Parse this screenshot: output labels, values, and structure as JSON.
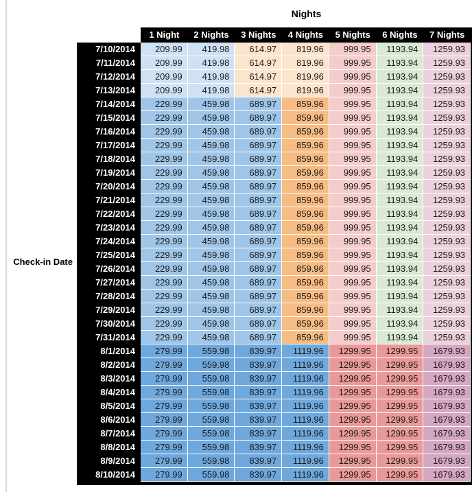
{
  "chart_data": {
    "type": "table",
    "title": "Nights",
    "row_axis": "Check-in Date",
    "columns": [
      "1 Night",
      "2 Nights",
      "3 Nights",
      "4 Nights",
      "5 Nights",
      "6 Nights",
      "7 Nights"
    ],
    "rows": [
      {
        "date": "7/10/2014",
        "tier": "low",
        "values": [
          "209.99",
          "419.98",
          "614.97",
          "819.96",
          "999.95",
          "1193.94",
          "1259.93"
        ]
      },
      {
        "date": "7/11/2014",
        "tier": "low",
        "values": [
          "209.99",
          "419.98",
          "614.97",
          "819.96",
          "999.95",
          "1193.94",
          "1259.93"
        ]
      },
      {
        "date": "7/12/2014",
        "tier": "low",
        "values": [
          "209.99",
          "419.98",
          "614.97",
          "819.96",
          "999.95",
          "1193.94",
          "1259.93"
        ]
      },
      {
        "date": "7/13/2014",
        "tier": "low",
        "values": [
          "209.99",
          "419.98",
          "614.97",
          "819.96",
          "999.95",
          "1193.94",
          "1259.93"
        ]
      },
      {
        "date": "7/14/2014",
        "tier": "mid",
        "values": [
          "229.99",
          "459.98",
          "689.97",
          "859.96",
          "999.95",
          "1193.94",
          "1259.93"
        ]
      },
      {
        "date": "7/15/2014",
        "tier": "mid",
        "values": [
          "229.99",
          "459.98",
          "689.97",
          "859.96",
          "999.95",
          "1193.94",
          "1259.93"
        ]
      },
      {
        "date": "7/16/2014",
        "tier": "mid",
        "values": [
          "229.99",
          "459.98",
          "689.97",
          "859.96",
          "999.95",
          "1193.94",
          "1259.93"
        ]
      },
      {
        "date": "7/17/2014",
        "tier": "mid",
        "values": [
          "229.99",
          "459.98",
          "689.97",
          "859.96",
          "999.95",
          "1193.94",
          "1259.93"
        ]
      },
      {
        "date": "7/18/2014",
        "tier": "mid",
        "values": [
          "229.99",
          "459.98",
          "689.97",
          "859.96",
          "999.95",
          "1193.94",
          "1259.93"
        ]
      },
      {
        "date": "7/19/2014",
        "tier": "mid",
        "values": [
          "229.99",
          "459.98",
          "689.97",
          "859.96",
          "999.95",
          "1193.94",
          "1259.93"
        ]
      },
      {
        "date": "7/20/2014",
        "tier": "mid",
        "values": [
          "229.99",
          "459.98",
          "689.97",
          "859.96",
          "999.95",
          "1193.94",
          "1259.93"
        ]
      },
      {
        "date": "7/21/2014",
        "tier": "mid",
        "values": [
          "229.99",
          "459.98",
          "689.97",
          "859.96",
          "999.95",
          "1193.94",
          "1259.93"
        ]
      },
      {
        "date": "7/22/2014",
        "tier": "mid",
        "values": [
          "229.99",
          "459.98",
          "689.97",
          "859.96",
          "999.95",
          "1193.94",
          "1259.93"
        ]
      },
      {
        "date": "7/23/2014",
        "tier": "mid",
        "values": [
          "229.99",
          "459.98",
          "689.97",
          "859.96",
          "999.95",
          "1193.94",
          "1259.93"
        ]
      },
      {
        "date": "7/24/2014",
        "tier": "mid",
        "values": [
          "229.99",
          "459.98",
          "689.97",
          "859.96",
          "999.95",
          "1193.94",
          "1259.93"
        ]
      },
      {
        "date": "7/25/2014",
        "tier": "mid",
        "values": [
          "229.99",
          "459.98",
          "689.97",
          "859.96",
          "999.95",
          "1193.94",
          "1259.93"
        ]
      },
      {
        "date": "7/26/2014",
        "tier": "mid",
        "values": [
          "229.99",
          "459.98",
          "689.97",
          "859.96",
          "999.95",
          "1193.94",
          "1259.93"
        ]
      },
      {
        "date": "7/27/2014",
        "tier": "mid",
        "values": [
          "229.99",
          "459.98",
          "689.97",
          "859.96",
          "999.95",
          "1193.94",
          "1259.93"
        ]
      },
      {
        "date": "7/28/2014",
        "tier": "mid",
        "values": [
          "229.99",
          "459.98",
          "689.97",
          "859.96",
          "999.95",
          "1193.94",
          "1259.93"
        ]
      },
      {
        "date": "7/29/2014",
        "tier": "mid",
        "values": [
          "229.99",
          "459.98",
          "689.97",
          "859.96",
          "999.95",
          "1193.94",
          "1259.93"
        ]
      },
      {
        "date": "7/30/2014",
        "tier": "mid",
        "values": [
          "229.99",
          "459.98",
          "689.97",
          "859.96",
          "999.95",
          "1193.94",
          "1259.93"
        ]
      },
      {
        "date": "7/31/2014",
        "tier": "mid",
        "values": [
          "229.99",
          "459.98",
          "689.97",
          "859.96",
          "999.95",
          "1193.94",
          "1259.93"
        ]
      },
      {
        "date": "8/1/2014",
        "tier": "high",
        "values": [
          "279.99",
          "559.98",
          "839.97",
          "1119.96",
          "1299.95",
          "1299.95",
          "1679.93"
        ]
      },
      {
        "date": "8/2/2014",
        "tier": "high",
        "values": [
          "279.99",
          "559.98",
          "839.97",
          "1119.96",
          "1299.95",
          "1299.95",
          "1679.93"
        ]
      },
      {
        "date": "8/3/2014",
        "tier": "high",
        "values": [
          "279.99",
          "559.98",
          "839.97",
          "1119.96",
          "1299.95",
          "1299.95",
          "1679.93"
        ]
      },
      {
        "date": "8/4/2014",
        "tier": "high",
        "values": [
          "279.99",
          "559.98",
          "839.97",
          "1119.96",
          "1299.95",
          "1299.95",
          "1679.93"
        ]
      },
      {
        "date": "8/5/2014",
        "tier": "high",
        "values": [
          "279.99",
          "559.98",
          "839.97",
          "1119.96",
          "1299.95",
          "1299.95",
          "1679.93"
        ]
      },
      {
        "date": "8/6/2014",
        "tier": "high",
        "values": [
          "279.99",
          "559.98",
          "839.97",
          "1119.96",
          "1299.95",
          "1299.95",
          "1679.93"
        ]
      },
      {
        "date": "8/7/2014",
        "tier": "high",
        "values": [
          "279.99",
          "559.98",
          "839.97",
          "1119.96",
          "1299.95",
          "1299.95",
          "1679.93"
        ]
      },
      {
        "date": "8/8/2014",
        "tier": "high",
        "values": [
          "279.99",
          "559.98",
          "839.97",
          "1119.96",
          "1299.95",
          "1299.95",
          "1679.93"
        ]
      },
      {
        "date": "8/9/2014",
        "tier": "high",
        "values": [
          "279.99",
          "559.98",
          "839.97",
          "1119.96",
          "1299.95",
          "1299.95",
          "1679.93"
        ]
      },
      {
        "date": "8/10/2014",
        "tier": "high",
        "values": [
          "279.99",
          "559.98",
          "839.97",
          "1119.96",
          "1299.95",
          "1299.95",
          "1679.93"
        ]
      }
    ]
  },
  "tier_colors": {
    "low": [
      "#CFE2F3",
      "#CFE2F3",
      "#FCE5CD",
      "#FCE5CD",
      "#F4CCCC",
      "#D9EAD3",
      "#EAD1DC"
    ],
    "mid": [
      "#9FC5E8",
      "#9FC5E8",
      "#9FC5E8",
      "#F6BC84",
      "#F4CCCC",
      "#D9EAD3",
      "#EAD1DC"
    ],
    "high": [
      "#6FA8DC",
      "#6FA8DC",
      "#6FA8DC",
      "#6FA8DC",
      "#EA9999",
      "#EA9999",
      "#D6A7C1"
    ]
  },
  "header_bg": "#000000",
  "header_text_color": "#ffffff"
}
